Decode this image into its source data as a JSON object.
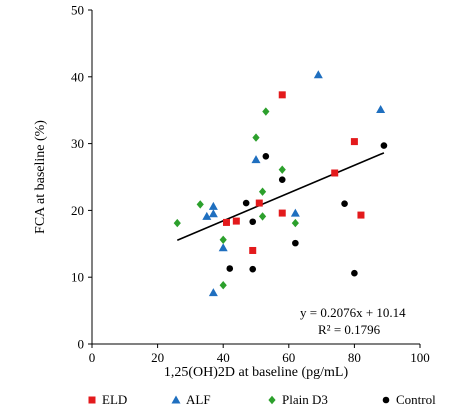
{
  "chart_data": {
    "type": "scatter",
    "title": "",
    "xlabel": "1,25(OH)2D at baseline (pg/mL)",
    "ylabel": "FCA at baseline (%)",
    "xlim": [
      0,
      100
    ],
    "ylim": [
      0,
      50
    ],
    "x_ticks": [
      "0",
      "20",
      "40",
      "60",
      "80",
      "100"
    ],
    "y_ticks": [
      "0",
      "10",
      "20",
      "30",
      "40",
      "50"
    ],
    "grid": false,
    "legend_position": "bottom",
    "series": [
      {
        "name": "ELD",
        "marker": "square",
        "color": "#e31a1c",
        "points": [
          {
            "x": 58,
            "y": 37.3
          },
          {
            "x": 80,
            "y": 30.3
          },
          {
            "x": 74,
            "y": 25.6
          },
          {
            "x": 51,
            "y": 21.1
          },
          {
            "x": 58,
            "y": 19.6
          },
          {
            "x": 82,
            "y": 19.3
          },
          {
            "x": 44,
            "y": 18.4
          },
          {
            "x": 41,
            "y": 18.2
          },
          {
            "x": 49,
            "y": 14.0
          }
        ]
      },
      {
        "name": "ALF",
        "marker": "triangle",
        "color": "#1f6fbf",
        "points": [
          {
            "x": 69,
            "y": 40.3
          },
          {
            "x": 88,
            "y": 35.1
          },
          {
            "x": 50,
            "y": 27.6
          },
          {
            "x": 37,
            "y": 20.6
          },
          {
            "x": 35,
            "y": 19.1
          },
          {
            "x": 37,
            "y": 19.5
          },
          {
            "x": 62,
            "y": 19.6
          },
          {
            "x": 40,
            "y": 14.4
          },
          {
            "x": 37,
            "y": 7.7
          }
        ]
      },
      {
        "name": "Plain D3",
        "marker": "diamond",
        "color": "#2ca02c",
        "points": [
          {
            "x": 53,
            "y": 34.8
          },
          {
            "x": 50,
            "y": 30.9
          },
          {
            "x": 58,
            "y": 26.1
          },
          {
            "x": 52,
            "y": 22.8
          },
          {
            "x": 33,
            "y": 20.9
          },
          {
            "x": 26,
            "y": 18.1
          },
          {
            "x": 52,
            "y": 19.1
          },
          {
            "x": 62,
            "y": 18.1
          },
          {
            "x": 40,
            "y": 15.6
          },
          {
            "x": 40,
            "y": 8.8
          }
        ]
      },
      {
        "name": "Control",
        "marker": "circle",
        "color": "#000000",
        "points": [
          {
            "x": 53,
            "y": 28.1
          },
          {
            "x": 89,
            "y": 29.7
          },
          {
            "x": 58,
            "y": 24.6
          },
          {
            "x": 47,
            "y": 21.1
          },
          {
            "x": 77,
            "y": 21.0
          },
          {
            "x": 49,
            "y": 18.3
          },
          {
            "x": 62,
            "y": 15.1
          },
          {
            "x": 42,
            "y": 11.3
          },
          {
            "x": 49,
            "y": 11.2
          },
          {
            "x": 80,
            "y": 10.6
          }
        ]
      }
    ],
    "trendline": {
      "slope": 0.2076,
      "intercept": 10.14,
      "x_range": [
        26,
        89
      ],
      "equation": "y = 0.2076x + 10.14",
      "r_squared": "R² = 0.1796"
    }
  }
}
